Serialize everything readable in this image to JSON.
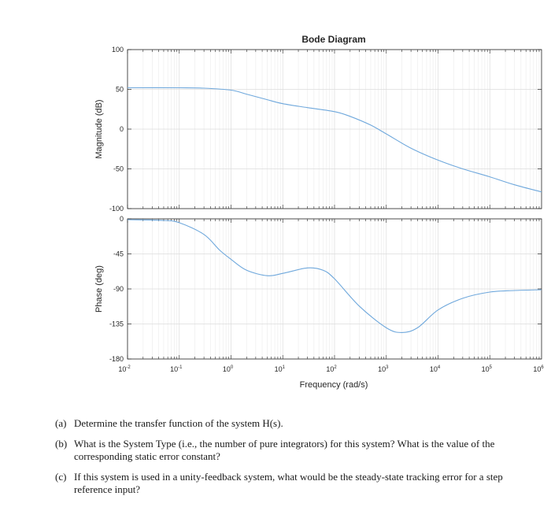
{
  "chart_data": [
    {
      "type": "line",
      "title": "Bode Diagram",
      "ylabel": "Magnitude (dB)",
      "xlabel": "",
      "xscale": "log",
      "xlim": [
        0.01,
        1000000
      ],
      "ylim": [
        -100,
        100
      ],
      "yticks": [
        "100",
        "50",
        "0",
        "-50",
        "-100"
      ],
      "grid": true,
      "series": [
        {
          "color": "#6fa8dc",
          "points": [
            [
              0.01,
              52
            ],
            [
              0.1,
              52
            ],
            [
              0.3,
              51.5
            ],
            [
              1,
              49
            ],
            [
              2,
              44
            ],
            [
              5,
              37
            ],
            [
              10,
              32
            ],
            [
              30,
              27
            ],
            [
              100,
              22
            ],
            [
              200,
              16
            ],
            [
              500,
              5
            ],
            [
              1000,
              -6
            ],
            [
              3000,
              -24
            ],
            [
              10000,
              -39
            ],
            [
              30000,
              -50
            ],
            [
              100000,
              -60
            ],
            [
              300000,
              -70
            ],
            [
              1000000,
              -79
            ]
          ]
        }
      ]
    },
    {
      "type": "line",
      "title": "",
      "ylabel": "Phase (deg)",
      "xlabel": "Frequency  (rad/s)",
      "xscale": "log",
      "xlim": [
        0.01,
        1000000
      ],
      "ylim": [
        -180,
        0
      ],
      "yticks": [
        "0",
        "-45",
        "-90",
        "-135",
        "-180"
      ],
      "xticks": [
        {
          "base": "10",
          "exp": "-2"
        },
        {
          "base": "10",
          "exp": "-1"
        },
        {
          "base": "10",
          "exp": "0"
        },
        {
          "base": "10",
          "exp": "1"
        },
        {
          "base": "10",
          "exp": "2"
        },
        {
          "base": "10",
          "exp": "3"
        },
        {
          "base": "10",
          "exp": "4"
        },
        {
          "base": "10",
          "exp": "5"
        },
        {
          "base": "10",
          "exp": "6"
        }
      ],
      "grid": true,
      "series": [
        {
          "color": "#6fa8dc",
          "points": [
            [
              0.01,
              -1
            ],
            [
              0.05,
              -2
            ],
            [
              0.1,
              -5
            ],
            [
              0.3,
              -20
            ],
            [
              0.6,
              -40
            ],
            [
              1,
              -52
            ],
            [
              2,
              -66
            ],
            [
              5,
              -73
            ],
            [
              10,
              -70
            ],
            [
              30,
              -63
            ],
            [
              60,
              -66
            ],
            [
              100,
              -77
            ],
            [
              300,
              -112
            ],
            [
              1000,
              -140
            ],
            [
              2000,
              -146
            ],
            [
              4000,
              -140
            ],
            [
              10000,
              -117
            ],
            [
              30000,
              -102
            ],
            [
              100000,
              -94
            ],
            [
              300000,
              -92
            ],
            [
              1000000,
              -91
            ]
          ]
        }
      ]
    }
  ],
  "questions": [
    {
      "label": "(a)",
      "text": "Determine the transfer function of the system H(s)."
    },
    {
      "label": "(b)",
      "text": "What is the System Type (i.e., the number of pure integrators) for this system? What is the value of the corresponding static error constant?"
    },
    {
      "label": "(c)",
      "text": "If this system is used in a unity-feedback system, what would be the steady-state tracking error for a step reference input?"
    }
  ]
}
